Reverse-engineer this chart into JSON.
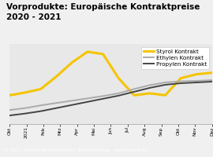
{
  "title": "Vorprodukte: Europäische Kontraktpreise\n2020 - 2021",
  "title_bg": "#F5C400",
  "footer": "© 2021 Kunststoff Information, Bad Homburg - www.kiweb.de",
  "x_labels": [
    "Okt",
    "2021",
    "Feb",
    "Mrz",
    "Apr",
    "Mai",
    "Jun",
    "Jul",
    "Aug",
    "Sep",
    "Okt",
    "Nov",
    "Dez"
  ],
  "series": [
    {
      "name": "Styrol Kontrakt",
      "color": "#F5C400",
      "linewidth": 2.2,
      "values": [
        820,
        855,
        900,
        1060,
        1240,
        1380,
        1350,
        1040,
        820,
        845,
        820,
        1040,
        1090,
        1110
      ]
    },
    {
      "name": "Ethylen Kontrakt",
      "color": "#aaaaaa",
      "linewidth": 1.4,
      "values": [
        630,
        655,
        690,
        720,
        750,
        780,
        810,
        845,
        900,
        950,
        985,
        1000,
        1005,
        1015
      ]
    },
    {
      "name": "Propylen Kontrakt",
      "color": "#444444",
      "linewidth": 1.4,
      "values": [
        560,
        585,
        615,
        655,
        695,
        735,
        775,
        815,
        865,
        915,
        955,
        975,
        985,
        995
      ]
    }
  ],
  "ylim": [
    450,
    1480
  ],
  "plot_bg": "#f0f0f0",
  "chart_bg": "#e8e8e8",
  "title_fontsize": 7.5,
  "legend_fontsize": 5.2,
  "footer_bg": "#7a7a7a",
  "footer_color": "#ffffff",
  "footer_fontsize": 4.2
}
